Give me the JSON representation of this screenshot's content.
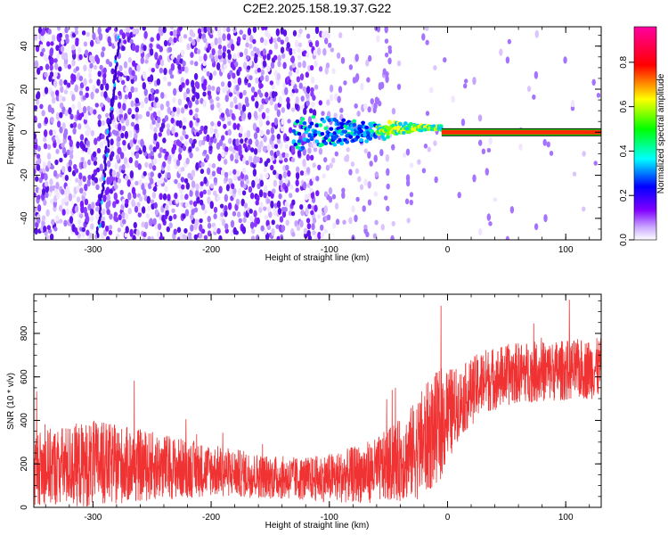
{
  "title": "C2E2.2025.158.19.37.G22",
  "chart_data": [
    {
      "type": "heatmap",
      "xlabel": "Height of straight line (km)",
      "ylabel": "Frequency (Hz)",
      "xlim": [
        -350,
        130
      ],
      "ylim": [
        -50,
        49
      ],
      "xticks": [
        -300,
        -200,
        -100,
        0,
        100
      ],
      "yticks": [
        -40,
        -20,
        0,
        20,
        40
      ],
      "colorbar": {
        "label": "Normalized spectral amplitude",
        "range": [
          0,
          0.96
        ],
        "ticks": [
          "0.0",
          "0.2",
          "0.4",
          "0.6",
          "0.8"
        ],
        "colormap": "rainbow (white-purple-blue-cyan-green-yellow-red-magenta)"
      },
      "features": {
        "noise_region_x": [
          -350,
          -30
        ],
        "converged_signal_x": [
          -45,
          130
        ],
        "converged_signal_frequency": 0,
        "diagonal_streak_x": [
          -300,
          -280
        ]
      }
    },
    {
      "type": "line",
      "xlabel": "Height of straight line (km)",
      "ylabel": "SNR (10 * v/v)",
      "xlim": [
        -350,
        130
      ],
      "ylim": [
        0,
        980
      ],
      "xticks": [
        -300,
        -200,
        -100,
        0,
        100
      ],
      "yticks": [
        0,
        200,
        400,
        600,
        800
      ],
      "color": "#f03232",
      "trend": {
        "x": [
          -350,
          -300,
          -250,
          -200,
          -150,
          -120,
          -90,
          -60,
          -35,
          -20,
          -5,
          10,
          30,
          60,
          100,
          130
        ],
        "center": [
          180,
          200,
          190,
          170,
          140,
          130,
          140,
          170,
          230,
          300,
          390,
          480,
          580,
          620,
          630,
          640
        ],
        "spread": [
          170,
          200,
          160,
          120,
          100,
          100,
          120,
          150,
          200,
          260,
          260,
          160,
          150,
          140,
          140,
          140
        ]
      }
    }
  ]
}
